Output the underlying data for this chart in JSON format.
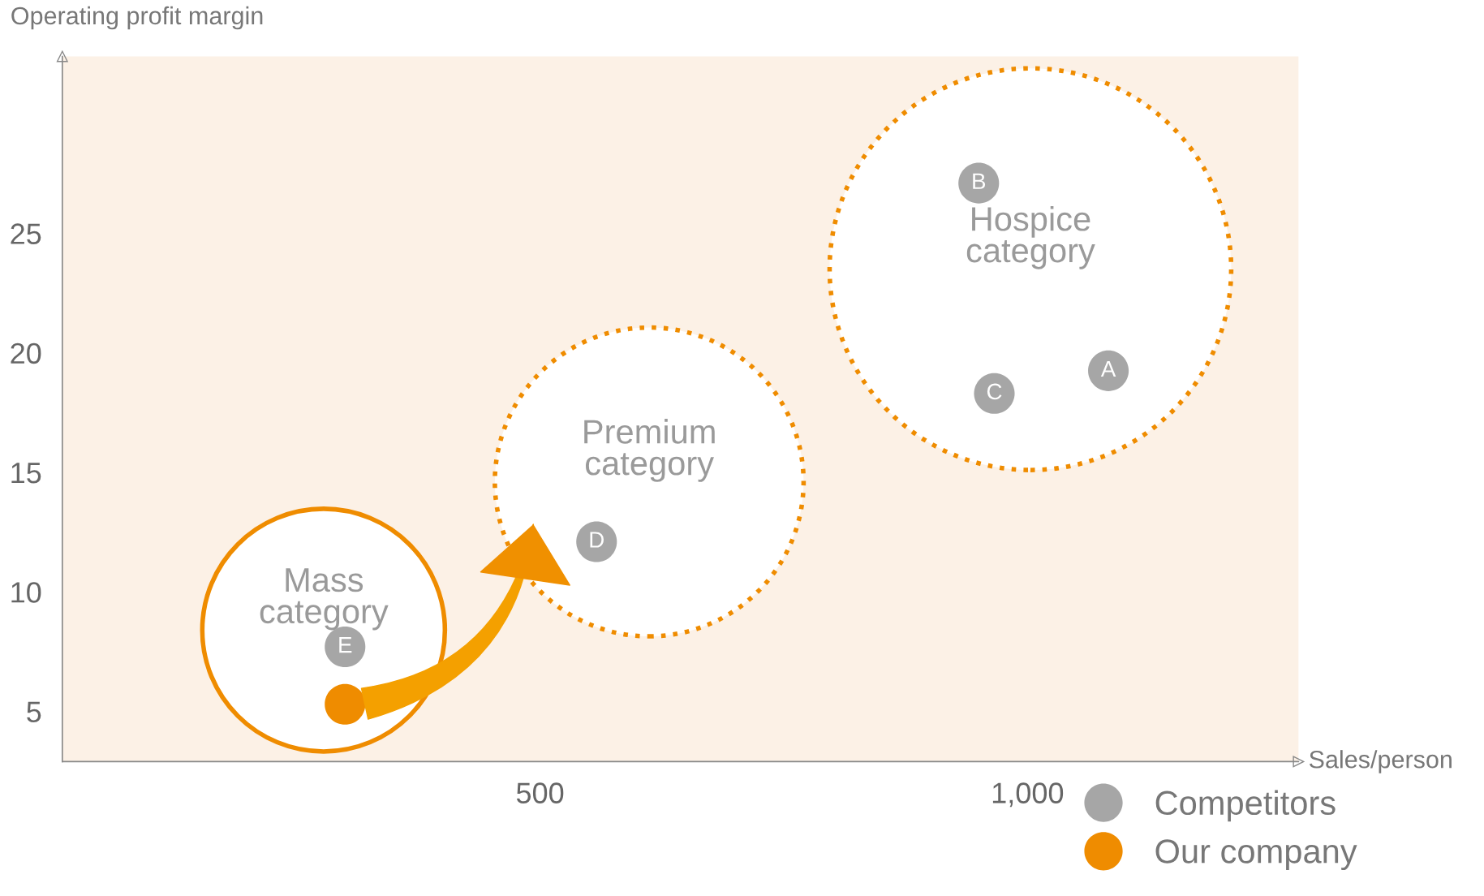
{
  "chart_data": {
    "type": "scatter",
    "xlabel": "Sales/person",
    "ylabel": "Operating profit margin",
    "xlim": [
      10,
      1278
    ],
    "ylim": [
      2.9,
      32.4
    ],
    "xticks": [
      500,
      {
        "value": 1000,
        "label": "1,000"
      }
    ],
    "yticks": [
      5,
      10,
      15,
      20,
      25
    ],
    "grid": false,
    "legend": "bottom right",
    "marker": "circle",
    "series": [
      {
        "type": "bubble",
        "color": "#ef8c00",
        "line_style": "solid",
        "x": [
          278
        ],
        "values": [
          8.4
        ],
        "sizes": [
          0.365
        ],
        "value_labels": [
          "Mass\ncategory"
        ]
      },
      {
        "type": "bubble",
        "color": "#ef8c00",
        "line_style": "dotted",
        "x": [
          612,
          1003
        ],
        "values": [
          14.6,
          23.5
        ],
        "sizes": [
          0.591,
          1
        ],
        "value_labels": [
          "Premium\ncategory",
          "Hospice\ncategory"
        ]
      },
      {
        "name": "Competitors",
        "color": "#a6a6a6",
        "x": [
          1083,
          950,
          966,
          558,
          300
        ],
        "values": [
          19.25,
          27.1,
          18.3,
          12.1,
          7.7
        ],
        "value_labels": [
          "A",
          "B",
          "C",
          "D",
          "E"
        ]
      },
      {
        "name": "Our company",
        "color": "#ef8c00",
        "x": [
          300
        ],
        "values": [
          5.3
        ]
      }
    ]
  }
}
